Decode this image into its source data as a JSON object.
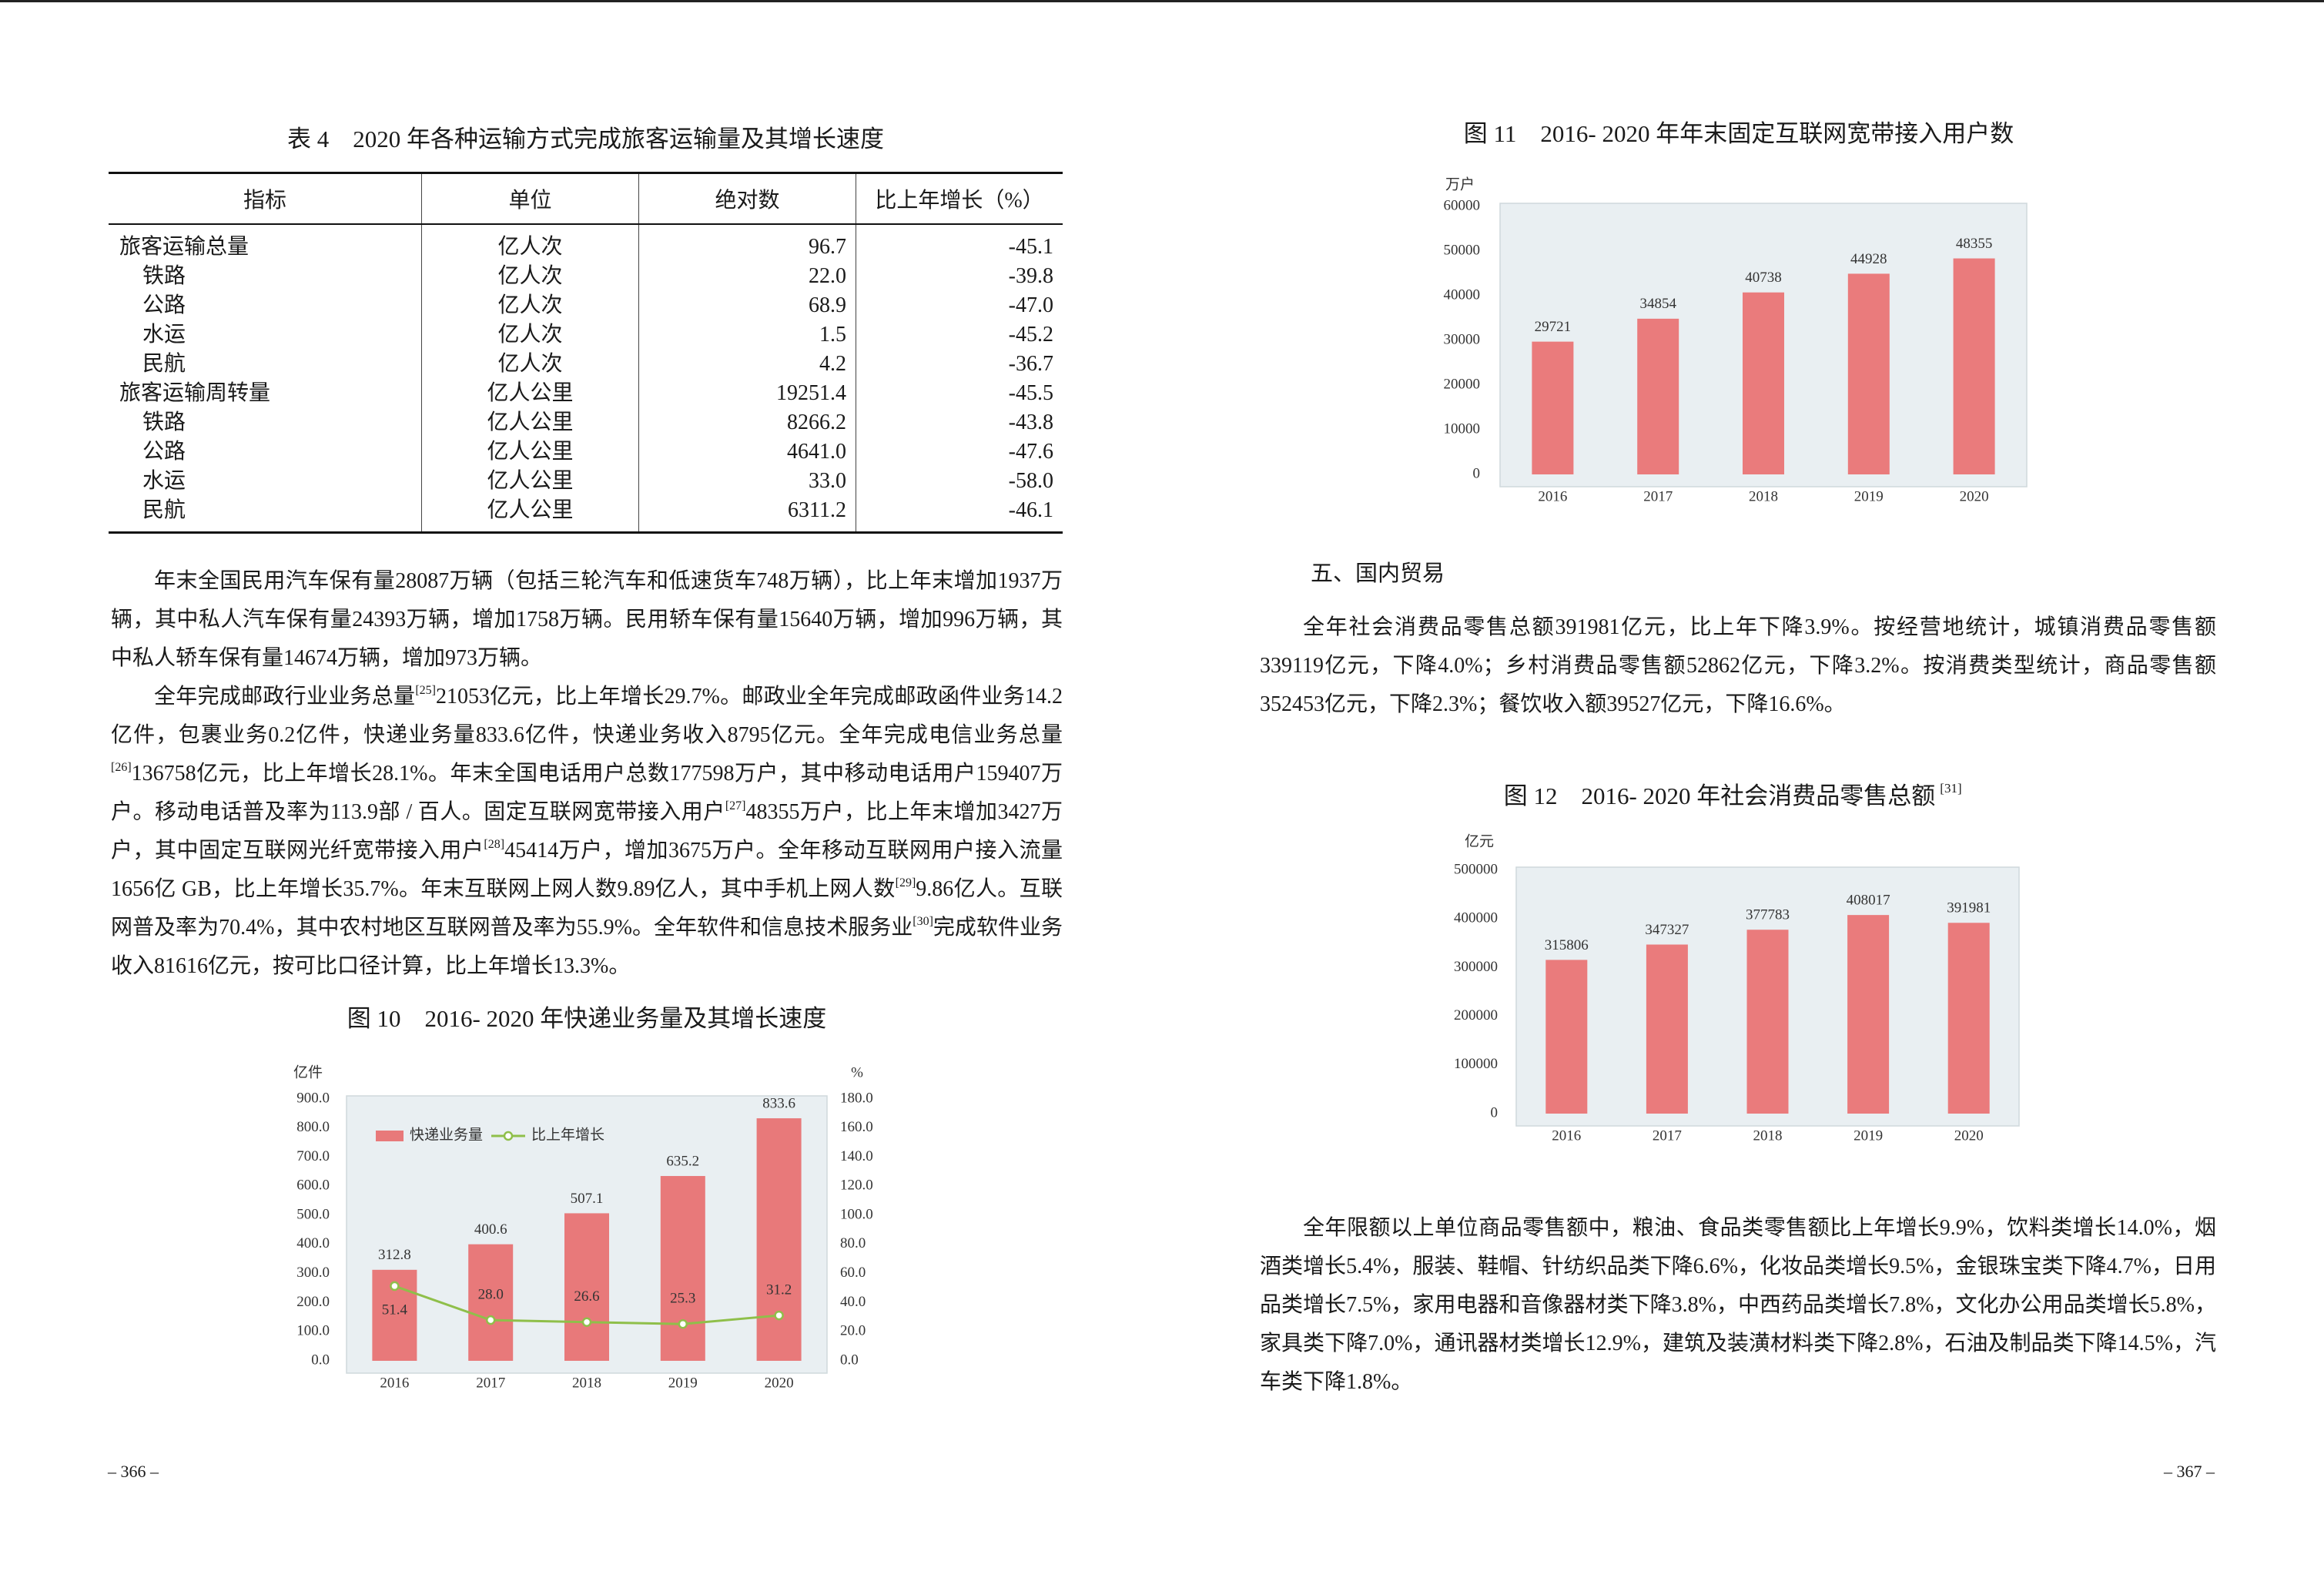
{
  "left_page": {
    "table": {
      "title": "表 4　2020 年各种运输方式完成旅客运输量及其增长速度",
      "header": [
        "指标",
        "单位",
        "绝对数",
        "比上年增长（%）"
      ],
      "rows": [
        [
          "旅客运输总量",
          "亿人次",
          "96.7",
          "-45.1"
        ],
        [
          "铁路",
          "亿人次",
          "22.0",
          "-39.8"
        ],
        [
          "公路",
          "亿人次",
          "68.9",
          "-47.0"
        ],
        [
          "水运",
          "亿人次",
          "1.5",
          "-45.2"
        ],
        [
          "民航",
          "亿人次",
          "4.2",
          "-36.7"
        ],
        [
          "旅客运输周转量",
          "亿人公里",
          "19251.4",
          "-45.5"
        ],
        [
          "铁路",
          "亿人公里",
          "8266.2",
          "-43.8"
        ],
        [
          "公路",
          "亿人公里",
          "4641.0",
          "-47.6"
        ],
        [
          "水运",
          "亿人公里",
          "33.0",
          "-58.0"
        ],
        [
          "民航",
          "亿人公里",
          "6311.2",
          "-46.1"
        ]
      ]
    },
    "paragraphs": [
      {
        "parts": [
          "年末全国民用汽车保有量28087万辆（包括三轮汽车和低速货车748万辆），比上年末增加1937万辆，其中私人汽车保有量24393万辆，增加1758万辆。民用轿车保有量15640万辆，增加996万辆，其中私人轿车保有量14674万辆，增加973万辆。"
        ]
      },
      {
        "parts": [
          "全年完成邮政行业业务总量",
          "21053亿元，比上年增长29.7%。邮政业全年完成邮政函件业务14.2亿件，包裹业务0.2亿件，快递业务量833.6亿件，快递业务收入8795亿元。全年完成电信业务总量",
          "136758亿元，比上年增长28.1%。年末全国电话用户总数177598万户，其中移动电话用户159407万户。移动电话普及率为113.9部 / 百人。固定互联网宽带接入用户",
          "48355万户，比上年末增加3427万户，其中固定互联网光纤宽带接入用户",
          "45414万户，增加3675万户。全年移动互联网用户接入流量1656亿 GB，比上年增长35.7%。年末互联网上网人数9.89亿人，其中手机上网人数",
          "9.86亿人。互联网普及率为70.4%，其中农村地区互联网普及率为55.9%。全年软件和信息技术服务业",
          "完成软件业务收入81616亿元，按可比口径计算，比上年增长13.3%。"
        ],
        "refs": [
          "[25]",
          "[26]",
          "[27]",
          "[28]",
          "[29]",
          "[30]"
        ]
      }
    ],
    "page_number": "– 366 –"
  },
  "right_page": {
    "section_heading": "五、国内贸易",
    "paragraphs": [
      {
        "parts": [
          "全年社会消费品零售总额391981亿元，比上年下降3.9%。按经营地统计，城镇消费品零售额339119亿元，下降4.0%；乡村消费品零售额52862亿元，下降3.2%。按消费类型统计，商品零售额352453亿元，下降2.3%；餐饮收入额39527亿元，下降16.6%。"
        ]
      },
      {
        "parts": [
          "全年限额以上单位商品零售额中，粮油、食品类零售额比上年增长9.9%，饮料类增长14.0%，烟酒类增长5.4%，服装、鞋帽、针纺织品类下降6.6%，化妆品类增长9.5%，金银珠宝类下降4.7%，日用品类增长7.5%，家用电器和音像器材类下降3.8%，中西药品类增长7.8%，文化办公用品类增长5.8%，家具类下降7.0%，通讯器材类增长12.9%，建筑及装潢材料类下降2.8%，石油及制品类下降14.5%，汽车类下降1.8%。"
        ]
      }
    ],
    "page_number": "– 367 –"
  },
  "chart_data": [
    {
      "type": "combo",
      "title": "图 10　2016- 2020 年快递业务量及其增长速度",
      "ylabel": "亿件",
      "y2label": "%",
      "categories": [
        "2016",
        "2017",
        "2018",
        "2019",
        "2020"
      ],
      "series": [
        {
          "name": "快递业务量",
          "type": "bar",
          "color": "#e8797a",
          "values": [
            312.8,
            400.6,
            507.1,
            635.2,
            833.6
          ]
        },
        {
          "name": "比上年增长",
          "type": "line",
          "axis": "y2",
          "color": "#8fbf4a",
          "values": [
            51.4,
            28,
            26.6,
            25.3,
            31.2
          ],
          "value_labels": [
            "51.4",
            "28.0",
            "26.6",
            "25.3",
            "31.2"
          ]
        }
      ],
      "ylim": [
        0,
        900
      ],
      "yticks": [
        {
          "value": 0,
          "label": "0.0"
        },
        {
          "value": 100,
          "label": "100.0"
        },
        {
          "value": 200,
          "label": "200.0"
        },
        {
          "value": 300,
          "label": "300.0"
        },
        {
          "value": 400,
          "label": "400.0"
        },
        {
          "value": 500,
          "label": "500.0"
        },
        {
          "value": 600,
          "label": "600.0"
        },
        {
          "value": 700,
          "label": "700.0"
        },
        {
          "value": 800,
          "label": "800.0"
        },
        {
          "value": 900,
          "label": "900.0"
        }
      ],
      "y2lim": [
        0,
        180
      ],
      "y2ticks": [
        {
          "value": 0,
          "label": "0.0"
        },
        {
          "value": 20,
          "label": "20.0"
        },
        {
          "value": 40,
          "label": "40.0"
        },
        {
          "value": 60,
          "label": "60.0"
        },
        {
          "value": 80,
          "label": "80.0"
        },
        {
          "value": 100,
          "label": "100.0"
        },
        {
          "value": 120,
          "label": "120.0"
        },
        {
          "value": 140,
          "label": "140.0"
        },
        {
          "value": 160,
          "label": "160.0"
        },
        {
          "value": 180,
          "label": "180.0"
        }
      ],
      "legend": "upper left"
    },
    {
      "type": "bar",
      "title": "图 11　2016- 2020 年年末固定互联网宽带接入用户数",
      "ylabel": "万户",
      "categories": [
        "2016",
        "2017",
        "2018",
        "2019",
        "2020"
      ],
      "values": [
        29721,
        34854,
        40738,
        44928,
        48355
      ],
      "color": "#ea7b7c",
      "ylim": [
        0,
        60000
      ],
      "yticks": [
        0,
        10000,
        20000,
        30000,
        40000,
        50000,
        60000
      ]
    },
    {
      "type": "bar",
      "title": "图 12　2016- 2020 年社会消费品零售总额",
      "title_ref": "[31]",
      "ylabel": "亿元",
      "categories": [
        "2016",
        "2017",
        "2018",
        "2019",
        "2020"
      ],
      "values": [
        315806,
        347327,
        377783,
        408017,
        391981
      ],
      "color": "#ea7b7c",
      "ylim": [
        0,
        500000
      ],
      "yticks": [
        0,
        100000,
        200000,
        300000,
        400000,
        500000
      ]
    }
  ]
}
